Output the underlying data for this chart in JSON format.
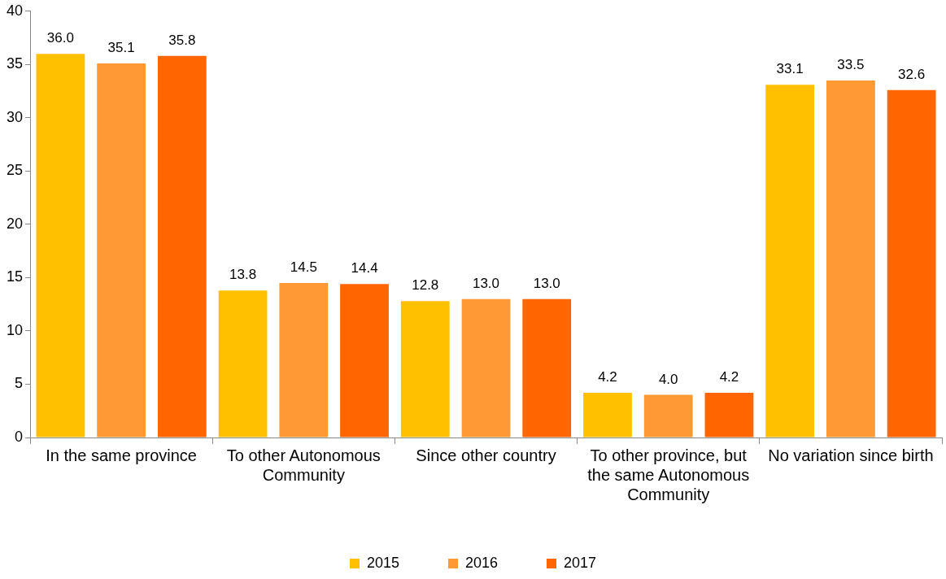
{
  "chart_data": {
    "type": "bar",
    "categories": [
      "In the same province",
      "To other Autonomous Community",
      "Since other country",
      "To other province, but the same Autonomous Community",
      "No variation since birth"
    ],
    "series": [
      {
        "name": "2015",
        "color": "#ffc000",
        "values": [
          36.0,
          13.8,
          12.8,
          4.2,
          33.1
        ],
        "value_labels": [
          "36.0",
          "13.8",
          "12.8",
          "4.2",
          "33.1"
        ]
      },
      {
        "name": "2016",
        "color": "#ff9933",
        "values": [
          35.1,
          14.5,
          13.0,
          4.0,
          33.5
        ],
        "value_labels": [
          "35.1",
          "14.5",
          "13.0",
          "4.0",
          "33.5"
        ]
      },
      {
        "name": "2017",
        "color": "#ff6600",
        "values": [
          35.8,
          14.4,
          13.0,
          4.2,
          32.6
        ],
        "value_labels": [
          "35.8",
          "14.4",
          "13.0",
          "4.2",
          "32.6"
        ]
      }
    ],
    "ylim": [
      0,
      40
    ],
    "yticks": [
      0,
      5,
      10,
      15,
      20,
      25,
      30,
      35,
      40
    ],
    "legend": "bottom"
  }
}
